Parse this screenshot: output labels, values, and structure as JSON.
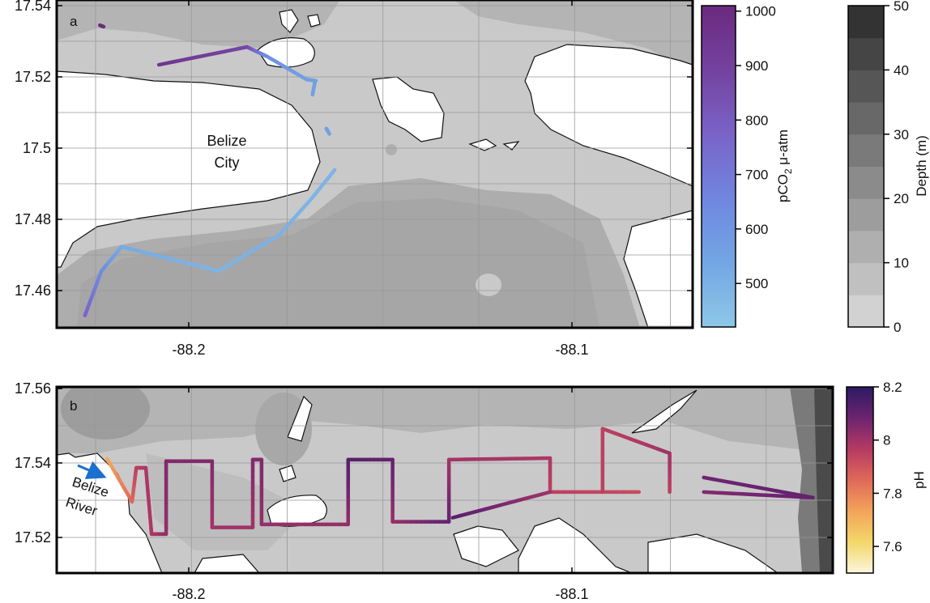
{
  "chart_data": [
    {
      "type": "map",
      "panel_label": "a",
      "place_label": [
        "Belize",
        "City"
      ],
      "xlim": [
        -88.235,
        -88.069
      ],
      "ylim": [
        17.45,
        17.542
      ],
      "xticks": [
        -88.2,
        -88.1
      ],
      "xtick_labels": [
        "-88.2",
        "-88.1"
      ],
      "yticks": [
        17.46,
        17.48,
        17.5,
        17.52,
        17.54
      ],
      "ytick_labels": [
        "17.46",
        "17.48",
        "17.5",
        "17.52",
        "17.54"
      ],
      "grid": true,
      "track_variable": "pCO2",
      "tracks": [
        {
          "lon": [
            -88.2271,
            -88.2228,
            -88.2175,
            -88.1922,
            -88.1763,
            -88.1679,
            -88.1619
          ],
          "lat": [
            17.453,
            17.4655,
            17.4723,
            17.4655,
            17.4757,
            17.4859,
            17.4939
          ],
          "value": [
            780,
            640,
            520,
            490,
            500,
            490,
            490
          ]
        },
        {
          "lon": [
            -88.2078,
            -88.1848,
            -88.1795,
            -88.1693,
            -88.1668
          ],
          "lat": [
            17.5234,
            17.5284,
            17.5257,
            17.5193,
            17.5189
          ],
          "value": [
            950,
            880,
            620,
            560,
            560
          ]
        },
        {
          "lon": [
            -88.1671,
            -88.1677
          ],
          "lat": [
            17.5184,
            17.515
          ],
          "value": [
            560,
            560
          ]
        },
        {
          "lon": [
            -88.1641,
            -88.1633
          ],
          "lat": [
            17.5055,
            17.504
          ],
          "value": [
            560,
            560
          ]
        },
        {
          "lon": [
            -88.2232,
            -88.2222
          ],
          "lat": [
            17.5345,
            17.5341
          ],
          "value": [
            1000,
            1000
          ]
        }
      ],
      "colorbars": [
        {
          "label_main": "pCO",
          "label_sub": "2",
          "label_unit": " μ-atm",
          "range": [
            420,
            1010
          ],
          "ticks": [
            500,
            600,
            700,
            800,
            900,
            1000
          ],
          "tick_labels": [
            "500",
            "600",
            "700",
            "800",
            "900",
            "1000"
          ],
          "colors": [
            "#8dc8e6",
            "#72a6e4",
            "#6f86df",
            "#7a63c8",
            "#74429f",
            "#6a2a7e"
          ]
        },
        {
          "label": "Depth (m)",
          "range": [
            0,
            50
          ],
          "ticks": [
            0,
            10,
            20,
            30,
            40,
            50
          ],
          "tick_labels": [
            "0",
            "10",
            "20",
            "30",
            "40",
            "50"
          ],
          "levels": 10,
          "colors": [
            "#d2d2d2",
            "#333333"
          ]
        }
      ]
    },
    {
      "type": "map",
      "panel_label": "b",
      "place_label": [
        "Belize",
        "River"
      ],
      "xlim": [
        -88.235,
        -88.033
      ],
      "ylim": [
        17.51,
        17.56
      ],
      "xticks": [
        -88.2,
        -88.1
      ],
      "xtick_labels": [
        "-88.2",
        "-88.1"
      ],
      "yticks": [
        17.52,
        17.54,
        17.56
      ],
      "ytick_labels": [
        "17.52",
        "17.54",
        "17.56"
      ],
      "grid": true,
      "arrow_color": "#1a6fcf",
      "track_variable": "pH",
      "tracks": [
        {
          "lon": [
            -88.2213,
            -88.2148,
            -88.2137,
            -88.2112,
            -88.2097,
            -88.2059,
            -88.2059,
            -88.1939,
            -88.1939,
            -88.1833,
            -88.1833,
            -88.181,
            -88.181,
            -88.1584,
            -88.1584,
            -88.1468,
            -88.1468,
            -88.1321,
            -88.1321,
            -88.1057,
            -88.1057,
            -88.0825
          ],
          "lat": [
            17.5411,
            17.5296,
            17.5387,
            17.5387,
            17.5209,
            17.5209,
            17.5405,
            17.5405,
            17.5227,
            17.5227,
            17.5409,
            17.5409,
            17.5235,
            17.5235,
            17.5409,
            17.5409,
            17.5242,
            17.5242,
            17.5409,
            17.5413,
            17.5322,
            17.5322
          ],
          "value": [
            7.72,
            7.85,
            7.95,
            7.98,
            7.98,
            8.02,
            8.05,
            8.05,
            8.0,
            8.0,
            8.05,
            8.05,
            8.02,
            8.02,
            8.12,
            8.1,
            8.02,
            8.1,
            8.0,
            7.98,
            7.95,
            7.92
          ]
        },
        {
          "lon": [
            -88.1311,
            -88.1057
          ],
          "lat": [
            17.5253,
            17.5322
          ],
          "value": [
            8.12,
            8.0
          ]
        },
        {
          "lon": [
            -88.092,
            -88.092,
            -88.0745,
            -88.0745
          ],
          "lat": [
            17.5322,
            17.5492,
            17.5426,
            17.5322
          ],
          "value": [
            7.95,
            7.95,
            8.0,
            7.95
          ]
        },
        {
          "lon": [
            -88.0656,
            -88.0371,
            -88.0656
          ],
          "lat": [
            17.5361,
            17.5307,
            17.5322
          ],
          "value": [
            8.08,
            8.1,
            8.05
          ]
        }
      ],
      "colorbars": [
        {
          "label": "pH",
          "range": [
            7.5,
            8.2
          ],
          "ticks": [
            7.6,
            7.8,
            8.0,
            8.2
          ],
          "tick_labels": [
            "7.6",
            "7.8",
            "8",
            "8.2"
          ],
          "colors": [
            "#fcf5dc",
            "#f3d76a",
            "#f3a35a",
            "#e0695a",
            "#b53a63",
            "#6c2470",
            "#2c1a63"
          ]
        }
      ]
    }
  ]
}
